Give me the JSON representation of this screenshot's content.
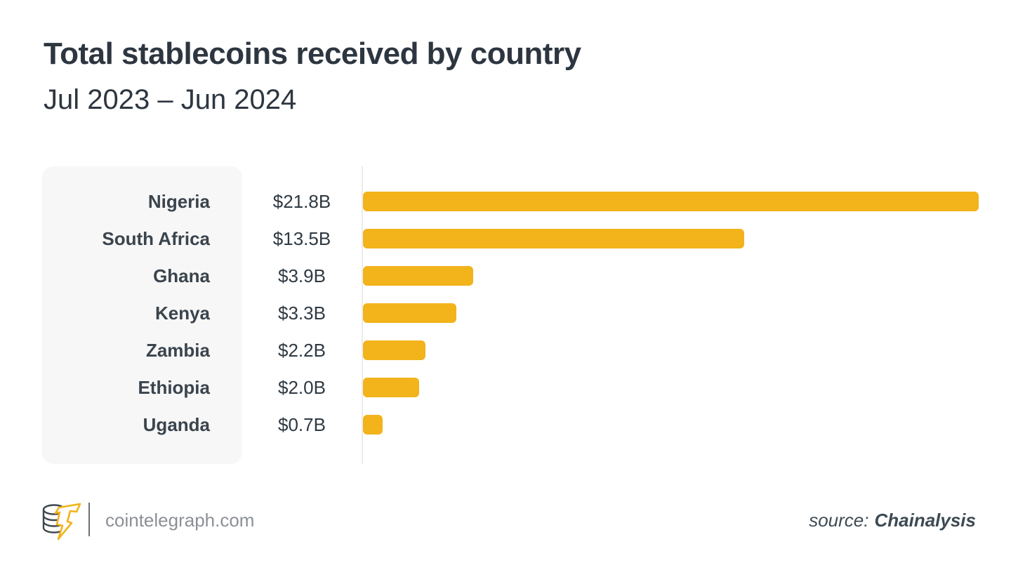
{
  "header": {
    "title": "Total stablecoins received by country",
    "subtitle": "Jul 2023 – Jun 2024"
  },
  "chart_data": {
    "type": "bar",
    "orientation": "horizontal",
    "title": "Total stablecoins received by country",
    "subtitle": "Jul 2023 – Jun 2024",
    "categories": [
      "Nigeria",
      "South Africa",
      "Ghana",
      "Kenya",
      "Zambia",
      "Ethiopia",
      "Uganda"
    ],
    "values": [
      21.8,
      13.5,
      3.9,
      3.3,
      2.2,
      2.0,
      0.7
    ],
    "value_labels": [
      "$21.8B",
      "$13.5B",
      "$3.9B",
      "$3.3B",
      "$2.2B",
      "$2.0B",
      "$0.7B"
    ],
    "xlim": [
      0,
      21.8
    ],
    "grid": false,
    "legend": false,
    "bar_color": "#F2B31B"
  },
  "colors": {
    "bar": "#F2B31B",
    "title_text": "#2d3640",
    "label_text": "#3a444d",
    "panel_background": "#f7f7f7",
    "axis_line": "#ececec",
    "background": "#ffffff"
  },
  "footer": {
    "site": "cointelegraph.com",
    "logo": "cointelegraph-coin-stack-lightning",
    "source_label": "source:",
    "source_name": "Chainalysis"
  }
}
